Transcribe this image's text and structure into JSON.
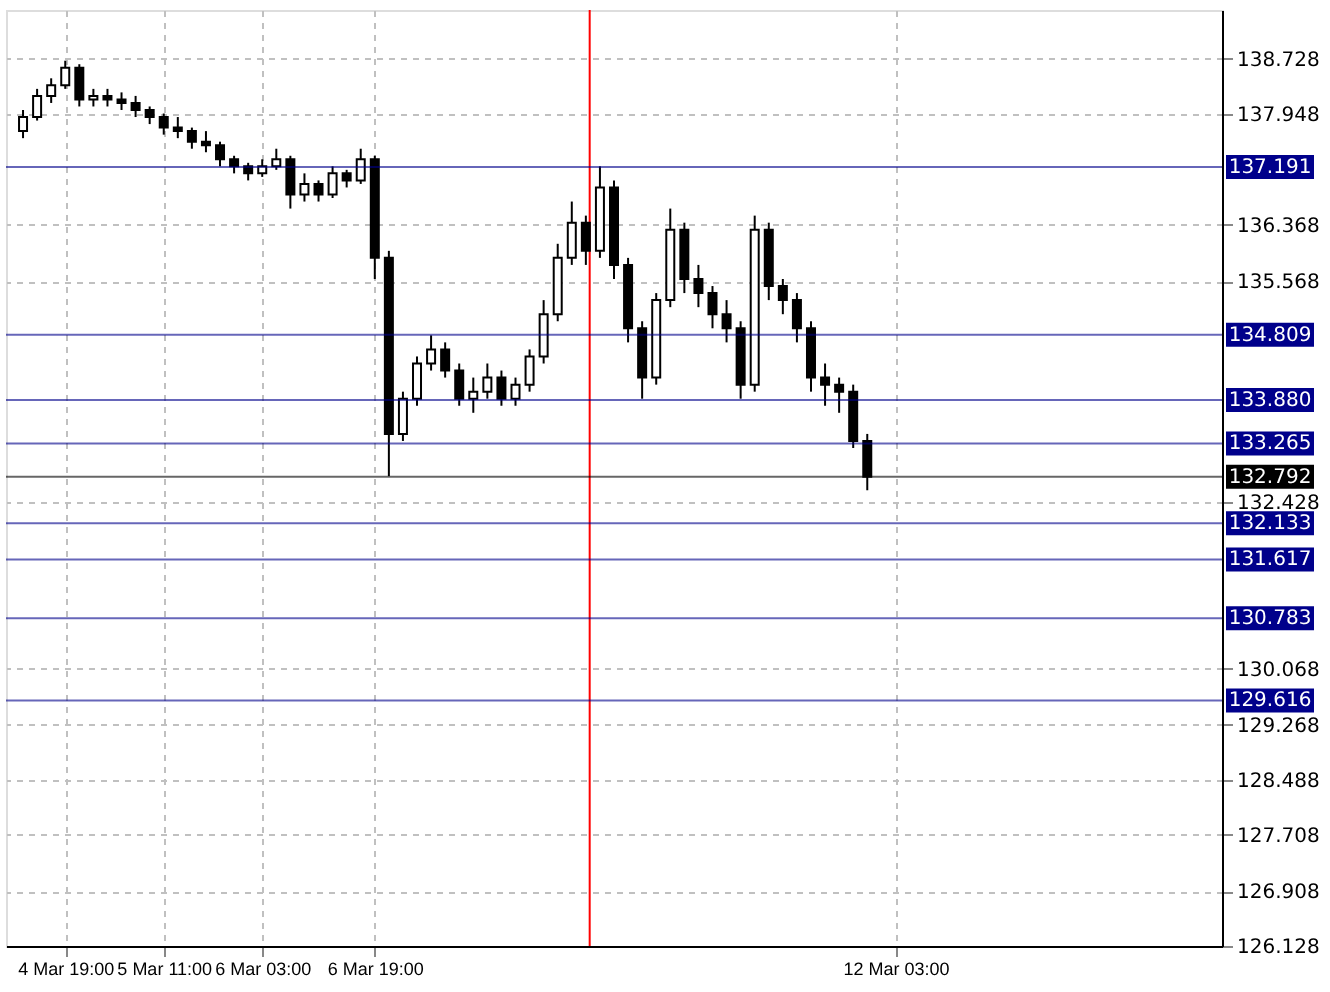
{
  "chart_data": {
    "type": "candlestick",
    "color": "#000000",
    "categories": [
      null,
      null,
      null,
      "4 Mar 19:00",
      null,
      null,
      null,
      null,
      null,
      null,
      "5 Mar 11:00",
      null,
      null,
      null,
      null,
      null,
      null,
      "6 Mar 03:00",
      null,
      null,
      null,
      null,
      null,
      null,
      null,
      "6 Mar 19:00",
      null,
      null,
      null,
      null,
      null,
      null,
      null,
      null,
      null,
      null,
      null,
      null,
      null,
      null,
      null,
      null,
      null,
      null,
      null,
      null,
      null,
      null,
      null,
      null,
      null,
      null,
      null,
      null,
      null,
      null,
      null,
      null,
      null,
      null,
      null,
      null,
      "12 Mar 03:00",
      null,
      null,
      null,
      null,
      null,
      null,
      null,
      null,
      null,
      null,
      null,
      null,
      null,
      null,
      null,
      null,
      null,
      null,
      null,
      null,
      null,
      null
    ],
    "ohlc": [
      [
        137.7,
        138.0,
        137.6,
        137.9
      ],
      [
        137.9,
        138.3,
        137.85,
        138.2
      ],
      [
        138.2,
        138.45,
        138.1,
        138.35
      ],
      [
        138.35,
        138.7,
        138.3,
        138.6
      ],
      [
        138.6,
        138.65,
        138.05,
        138.15
      ],
      [
        138.15,
        138.3,
        138.05,
        138.2
      ],
      [
        138.2,
        138.3,
        138.05,
        138.15
      ],
      [
        138.15,
        138.25,
        138.0,
        138.1
      ],
      [
        138.1,
        138.2,
        137.9,
        138.0
      ],
      [
        138.0,
        138.05,
        137.8,
        137.9
      ],
      [
        137.9,
        137.95,
        137.65,
        137.75
      ],
      [
        137.75,
        137.9,
        137.6,
        137.7
      ],
      [
        137.7,
        137.75,
        137.45,
        137.55
      ],
      [
        137.55,
        137.7,
        137.4,
        137.5
      ],
      [
        137.5,
        137.55,
        137.2,
        137.3
      ],
      [
        137.3,
        137.35,
        137.1,
        137.2
      ],
      [
        137.2,
        137.25,
        137.0,
        137.1
      ],
      [
        137.1,
        137.3,
        137.05,
        137.2
      ],
      [
        137.2,
        137.45,
        137.15,
        137.3
      ],
      [
        137.3,
        137.35,
        136.6,
        136.8
      ],
      [
        136.8,
        137.1,
        136.7,
        136.95
      ],
      [
        136.95,
        137.0,
        136.7,
        136.8
      ],
      [
        136.8,
        137.2,
        136.75,
        137.1
      ],
      [
        137.1,
        137.15,
        136.9,
        137.0
      ],
      [
        137.0,
        137.45,
        136.95,
        137.3
      ],
      [
        137.3,
        137.35,
        135.6,
        135.9
      ],
      [
        135.9,
        136.0,
        132.8,
        133.4
      ],
      [
        133.4,
        134.0,
        133.3,
        133.9
      ],
      [
        133.9,
        134.5,
        133.8,
        134.4
      ],
      [
        134.4,
        134.8,
        134.3,
        134.6
      ],
      [
        134.6,
        134.7,
        134.2,
        134.3
      ],
      [
        134.3,
        134.4,
        133.8,
        133.9
      ],
      [
        133.9,
        134.2,
        133.7,
        134.0
      ],
      [
        134.0,
        134.4,
        133.9,
        134.2
      ],
      [
        134.2,
        134.3,
        133.8,
        133.9
      ],
      [
        133.9,
        134.2,
        133.8,
        134.1
      ],
      [
        134.1,
        134.6,
        134.0,
        134.5
      ],
      [
        134.5,
        135.3,
        134.4,
        135.1
      ],
      [
        135.1,
        136.1,
        135.0,
        135.9
      ],
      [
        135.9,
        136.7,
        135.8,
        136.4
      ],
      [
        136.4,
        136.5,
        135.8,
        136.0
      ],
      [
        136.0,
        137.2,
        135.9,
        136.9
      ],
      [
        136.9,
        137.0,
        135.6,
        135.8
      ],
      [
        135.8,
        135.9,
        134.7,
        134.9
      ],
      [
        134.9,
        135.0,
        133.9,
        134.2
      ],
      [
        134.2,
        135.4,
        134.1,
        135.3
      ],
      [
        135.3,
        136.6,
        135.2,
        136.3
      ],
      [
        136.3,
        136.4,
        135.4,
        135.6
      ],
      [
        135.6,
        135.8,
        135.2,
        135.4
      ],
      [
        135.4,
        135.5,
        134.9,
        135.1
      ],
      [
        135.1,
        135.3,
        134.7,
        134.9
      ],
      [
        134.9,
        135.0,
        133.9,
        134.1
      ],
      [
        134.1,
        136.5,
        134.0,
        136.3
      ],
      [
        136.3,
        136.4,
        135.3,
        135.5
      ],
      [
        135.5,
        135.6,
        135.1,
        135.3
      ],
      [
        135.3,
        135.4,
        134.7,
        134.9
      ],
      [
        134.9,
        135.0,
        134.0,
        134.2
      ],
      [
        134.2,
        134.4,
        133.8,
        134.1
      ],
      [
        134.1,
        134.2,
        133.7,
        134.0
      ],
      [
        134.0,
        134.1,
        133.2,
        133.3
      ],
      [
        133.3,
        133.4,
        132.6,
        132.792
      ],
      null,
      null,
      null,
      null,
      null,
      null,
      null,
      null,
      null,
      null,
      null,
      null,
      null,
      null,
      null,
      null,
      null,
      null,
      null,
      null,
      null,
      null,
      null,
      null
    ],
    "ylim": [
      126.128,
      139.42
    ],
    "yticks": [
      138.728,
      137.948,
      136.368,
      135.568,
      132.428,
      130.068,
      129.268,
      128.488,
      127.708,
      126.908,
      126.128
    ],
    "grid": true,
    "ref_lines": [
      {
        "axis": "y",
        "value": 137.191,
        "label": "137.191",
        "color": "#00008b"
      },
      {
        "axis": "y",
        "value": 134.809,
        "label": "134.809",
        "color": "#00008b"
      },
      {
        "axis": "y",
        "value": 133.88,
        "label": "133.880",
        "color": "#00008b"
      },
      {
        "axis": "y",
        "value": 133.265,
        "label": "133.265",
        "color": "#00008b"
      },
      {
        "axis": "y",
        "value": 132.792,
        "label": "132.792",
        "color": "#000000"
      },
      {
        "axis": "y",
        "value": 132.133,
        "label": "132.133",
        "color": "#00008b"
      },
      {
        "axis": "y",
        "value": 131.617,
        "label": "131.617",
        "color": "#00008b"
      },
      {
        "axis": "y",
        "value": 130.783,
        "label": "130.783",
        "color": "#00008b"
      },
      {
        "axis": "y",
        "value": 129.616,
        "label": "129.616",
        "color": "#00008b"
      }
    ]
  }
}
